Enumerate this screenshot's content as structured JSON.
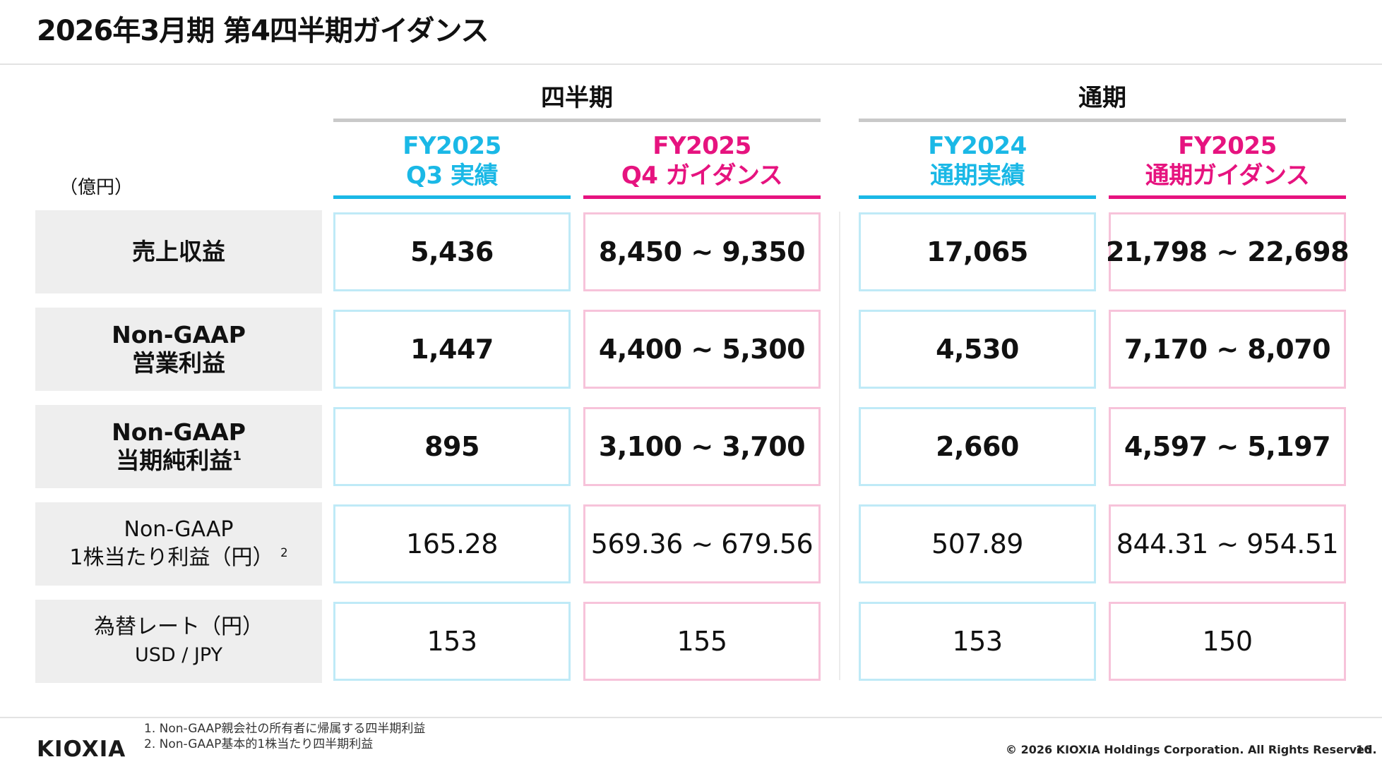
{
  "page": {
    "title": "2026年3月期 第4四半期ガイダンス",
    "unit": "（億円）",
    "page_number": "16",
    "copyright": "© 2026 KIOXIA Holdings Corporation. All Rights Reserved.",
    "logo_text": "KIOXIA"
  },
  "colors": {
    "cyan": "#1ab8e6",
    "magenta": "#e6137f",
    "cyan_border": "#bfeaf7",
    "pink_border": "#f7c3da",
    "label_bg": "#eeeeee"
  },
  "groups": {
    "quarter": "四半期",
    "fullyear": "通期"
  },
  "columns": [
    {
      "line1": "FY2025",
      "line2": "Q3 実績"
    },
    {
      "line1": "FY2025",
      "line2": "Q4 ガイダンス"
    },
    {
      "line1": "FY2024",
      "line2": "通期実績"
    },
    {
      "line1": "FY2025",
      "line2": "通期ガイダンス"
    }
  ],
  "rows": [
    {
      "label1": "売上収益",
      "label2": "",
      "sup": "",
      "values": [
        "5,436",
        "8,450 ~ 9,350",
        "17,065",
        "21,798 ~ 22,698"
      ]
    },
    {
      "label1": "Non-GAAP",
      "label2": "営業利益",
      "sup": "",
      "values": [
        "1,447",
        "4,400 ~ 5,300",
        "4,530",
        "7,170 ~ 8,070"
      ]
    },
    {
      "label1": "Non-GAAP",
      "label2": "当期純利益",
      "sup": "1",
      "values": [
        "895",
        "3,100 ~ 3,700",
        "2,660",
        "4,597 ~ 5,197"
      ]
    },
    {
      "label1": "Non-GAAP",
      "label2": "1株当たり利益（円）",
      "sup": "2",
      "values": [
        "165.28",
        "569.36 ~ 679.56",
        "507.89",
        "844.31 ~ 954.51"
      ]
    },
    {
      "label1": "為替レート（円）",
      "label2": "USD / JPY",
      "sup": "",
      "values": [
        "153",
        "155",
        "153",
        "150"
      ]
    }
  ],
  "footnotes": [
    "1. Non-GAAP親会社の所有者に帰属する四半期利益",
    "2. Non-GAAP基本的1株当たり四半期利益"
  ]
}
